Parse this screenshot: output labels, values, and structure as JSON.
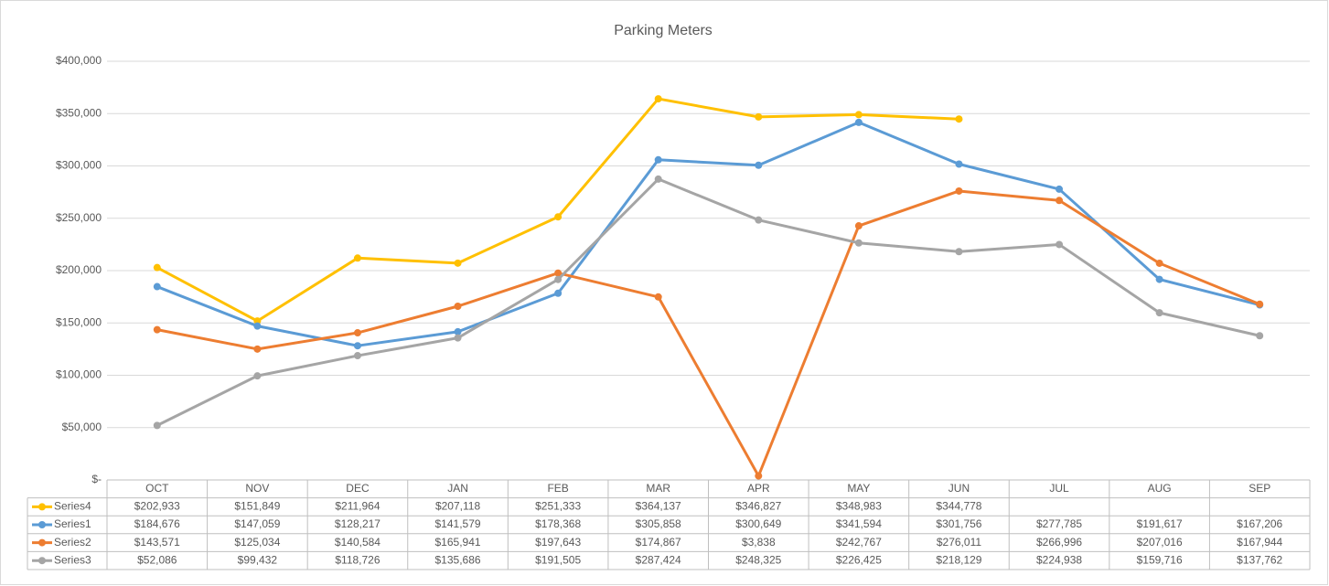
{
  "chart_data": {
    "type": "line",
    "title": "Parking Meters",
    "categories": [
      "OCT",
      "NOV",
      "DEC",
      "JAN",
      "FEB",
      "MAR",
      "APR",
      "MAY",
      "JUN",
      "JUL",
      "AUG",
      "SEP"
    ],
    "series": [
      {
        "name": "Series4",
        "color": "#FFC000",
        "values": [
          202933,
          151849,
          211964,
          207118,
          251333,
          364137,
          346827,
          348983,
          344778,
          null,
          null,
          null
        ],
        "value_labels": [
          "$202,933",
          "$151,849",
          "$211,964",
          "$207,118",
          "$251,333",
          "$364,137",
          "$346,827",
          "$348,983",
          "$344,778",
          null,
          null,
          null
        ]
      },
      {
        "name": "Series1",
        "color": "#5B9BD5",
        "values": [
          184676,
          147059,
          128217,
          141579,
          178368,
          305858,
          300649,
          341594,
          301756,
          277785,
          191617,
          167206
        ],
        "value_labels": [
          "$184,676",
          "$147,059",
          "$128,217",
          "$141,579",
          "$178,368",
          "$305,858",
          "$300,649",
          "$341,594",
          "$301,756",
          "$277,785",
          "$191,617",
          "$167,206"
        ]
      },
      {
        "name": "Series2",
        "color": "#ED7D31",
        "values": [
          143571,
          125034,
          140584,
          165941,
          197643,
          174867,
          3838,
          242767,
          276011,
          266996,
          207016,
          167944
        ],
        "value_labels": [
          "$143,571",
          "$125,034",
          "$140,584",
          "$165,941",
          "$197,643",
          "$174,867",
          "$3,838",
          "$242,767",
          "$276,011",
          "$266,996",
          "$207,016",
          "$167,944"
        ]
      },
      {
        "name": "Series3",
        "color": "#A5A5A5",
        "values": [
          52086,
          99432,
          118726,
          135686,
          191505,
          287424,
          248325,
          226425,
          218129,
          224938,
          159716,
          137762
        ],
        "value_labels": [
          "$52,086",
          "$99,432",
          "$118,726",
          "$135,686",
          "$191,505",
          "$287,424",
          "$248,325",
          "$226,425",
          "$218,129",
          "$224,938",
          "$159,716",
          "$137,762"
        ]
      }
    ],
    "ylim": [
      0,
      400000
    ],
    "yticks": [
      {
        "value": 0,
        "label": "$-"
      },
      {
        "value": 50000,
        "label": "$50,000"
      },
      {
        "value": 100000,
        "label": "$100,000"
      },
      {
        "value": 150000,
        "label": "$150,000"
      },
      {
        "value": 200000,
        "label": "$200,000"
      },
      {
        "value": 250000,
        "label": "$250,000"
      },
      {
        "value": 300000,
        "label": "$300,000"
      },
      {
        "value": 350000,
        "label": "$350,000"
      },
      {
        "value": 400000,
        "label": "$400,000"
      }
    ],
    "grid": true
  }
}
